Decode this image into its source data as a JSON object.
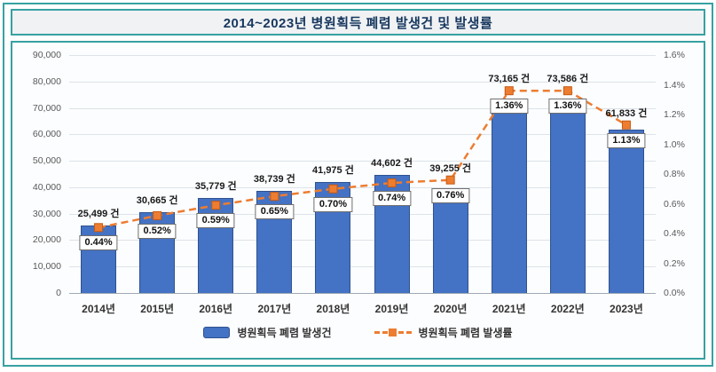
{
  "title": "2014~2023년 병원획득 폐렴 발생건 및 발생률",
  "colors": {
    "teal_border": "#38A1A1",
    "title_text": "#17375E",
    "bar_fill": "#4472C4",
    "bar_border": "#2F528F",
    "line": "#ED7D31",
    "line_marker_border": "#C55A11"
  },
  "chart_data": {
    "type": "combo",
    "title": "2014~2023년 병원획득 폐렴 발생건 및 발생률",
    "categories": [
      "2014년",
      "2015년",
      "2016년",
      "2017년",
      "2018년",
      "2019년",
      "2020년",
      "2021년",
      "2022년",
      "2023년"
    ],
    "series": [
      {
        "name": "병원획득 폐렴 발생건",
        "type": "bar",
        "axis": "left",
        "color": "#4472C4",
        "values": [
          25499,
          30665,
          35779,
          38739,
          41975,
          44602,
          39255,
          73165,
          73586,
          61833
        ],
        "labels": [
          "25,499 건",
          "30,665 건",
          "35,779 건",
          "38,739 건",
          "41,975 건",
          "44,602 건",
          "39,255 건",
          "73,165 건",
          "73,586 건",
          "61,833 건"
        ]
      },
      {
        "name": "병원획득 폐렴 발생률",
        "type": "line",
        "axis": "right",
        "color": "#ED7D31",
        "values": [
          0.44,
          0.52,
          0.59,
          0.65,
          0.7,
          0.74,
          0.76,
          1.36,
          1.36,
          1.13
        ],
        "labels": [
          "0.44%",
          "0.52%",
          "0.59%",
          "0.65%",
          "0.70%",
          "0.74%",
          "0.76%",
          "1.36%",
          "1.36%",
          "1.13%"
        ]
      }
    ],
    "left_axis": {
      "min": 0,
      "max": 90000,
      "step": 10000,
      "tick_labels": [
        "0",
        "10,000",
        "20,000",
        "30,000",
        "40,000",
        "50,000",
        "60,000",
        "70,000",
        "80,000",
        "90,000"
      ]
    },
    "right_axis": {
      "min": 0,
      "max": 1.6,
      "step": 0.2,
      "tick_labels": [
        "0.0%",
        "0.2%",
        "0.4%",
        "0.6%",
        "0.8%",
        "1.0%",
        "1.2%",
        "1.4%",
        "1.6%"
      ]
    },
    "grid": true,
    "legend_position": "bottom"
  }
}
